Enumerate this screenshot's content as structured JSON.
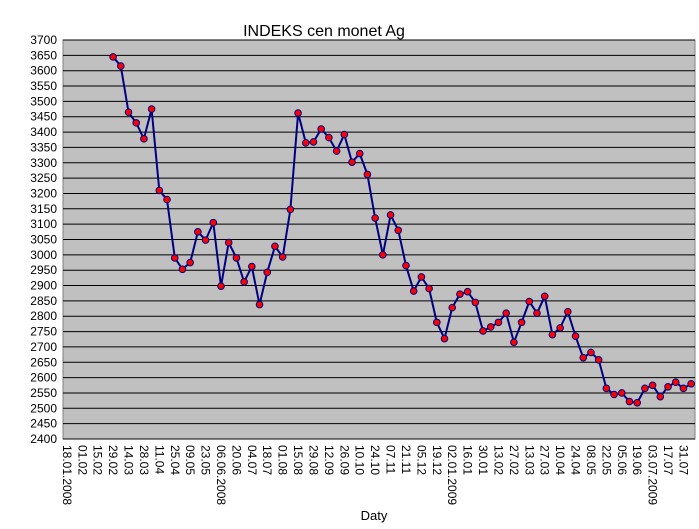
{
  "chart_data": {
    "type": "line",
    "title": "INDEKS cen monet Ag",
    "x_label": "Daty",
    "categories": [
      "18.01.2008",
      null,
      "01.02",
      null,
      "15.02",
      null,
      "29.02",
      null,
      "14.03",
      null,
      "28.03",
      null,
      "11.04",
      null,
      "25.04",
      null,
      "09.05",
      null,
      "23.05",
      null,
      "06.06.2008",
      null,
      "20.06",
      null,
      "04.07",
      null,
      "18.07",
      null,
      "01.08",
      null,
      "15.08",
      null,
      "29.08",
      null,
      "12.09",
      null,
      "26.09",
      null,
      "10.10",
      null,
      "24.10",
      null,
      "07.11",
      null,
      "21.11",
      null,
      "05.12",
      null,
      "19.12",
      null,
      "02.01.2009",
      null,
      "16.01",
      null,
      "30.01",
      null,
      "13.02",
      null,
      "27.02",
      null,
      "13.03",
      null,
      "27.03",
      null,
      "10.04",
      null,
      "24.04",
      null,
      "08.05",
      null,
      "22.05",
      null,
      "05.06",
      null,
      "19.06",
      null,
      "03.07.2009",
      null,
      "17.07",
      null,
      "31.07",
      null
    ],
    "values": [
      null,
      null,
      null,
      null,
      null,
      null,
      3645,
      3615,
      3465,
      3430,
      3378,
      3475,
      3210,
      3180,
      2990,
      2953,
      2975,
      3075,
      3048,
      3105,
      2898,
      3040,
      2990,
      2912,
      2962,
      2838,
      2943,
      3028,
      2993,
      3148,
      3462,
      3365,
      3368,
      3410,
      3382,
      3338,
      3392,
      3302,
      3330,
      3262,
      3120,
      3000,
      3130,
      3080,
      2965,
      2882,
      2928,
      2890,
      2780,
      2727,
      2828,
      2872,
      2880,
      2845,
      2752,
      2765,
      2780,
      2810,
      2715,
      2780,
      2848,
      2810,
      2865,
      2740,
      2762,
      2815,
      2735,
      2665,
      2682,
      2658,
      2565,
      2545,
      2550,
      2522,
      2518,
      2565,
      2575,
      2538,
      2570,
      2585,
      2565,
      2580
    ],
    "color": "#000080",
    "marker_color": "#ff0000",
    "plot_background": "#c0c0c0",
    "ylim": [
      2400,
      3700
    ],
    "yticks": [
      2400,
      2450,
      2500,
      2550,
      2600,
      2650,
      2700,
      2750,
      2800,
      2850,
      2900,
      2950,
      3000,
      3050,
      3100,
      3150,
      3200,
      3250,
      3300,
      3350,
      3400,
      3450,
      3500,
      3550,
      3600,
      3650,
      3700
    ],
    "grid": true
  }
}
